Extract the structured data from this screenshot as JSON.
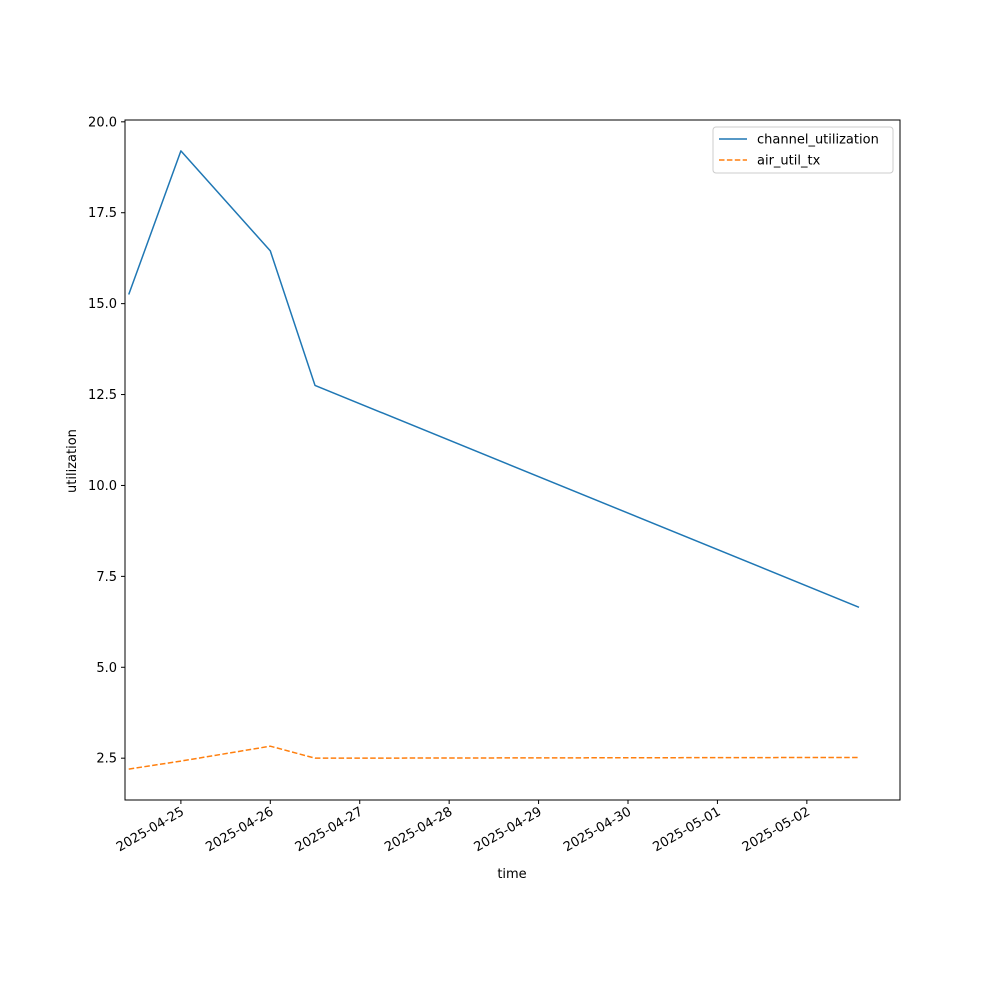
{
  "chart_data": {
    "type": "line",
    "title": "",
    "xlabel": "time",
    "ylabel": "utilization",
    "x_axis_type": "date",
    "xlim": [
      "2025-04-24 09:00",
      "2025-05-03 01:00"
    ],
    "ylim": [
      1.35,
      20.05
    ],
    "x_ticks": [
      "2025-04-25",
      "2025-04-26",
      "2025-04-27",
      "2025-04-28",
      "2025-04-29",
      "2025-04-30",
      "2025-05-01",
      "2025-05-02"
    ],
    "y_ticks": [
      2.5,
      5.0,
      7.5,
      10.0,
      12.5,
      15.0,
      17.5,
      20.0
    ],
    "grid": false,
    "legend": "top-right",
    "series": [
      {
        "name": "channel_utilization",
        "color": "#1f77b4",
        "style": "solid",
        "points": [
          {
            "x": "2025-04-24 10:00",
            "y": 15.25
          },
          {
            "x": "2025-04-25 00:00",
            "y": 19.2
          },
          {
            "x": "2025-04-26 00:00",
            "y": 16.45
          },
          {
            "x": "2025-04-26 12:00",
            "y": 12.75
          },
          {
            "x": "2025-05-02 14:00",
            "y": 6.65
          }
        ]
      },
      {
        "name": "air_util_tx",
        "color": "#ff7f0e",
        "style": "dashed",
        "points": [
          {
            "x": "2025-04-24 10:00",
            "y": 2.2
          },
          {
            "x": "2025-04-25 00:00",
            "y": 2.42
          },
          {
            "x": "2025-04-26 00:00",
            "y": 2.83
          },
          {
            "x": "2025-04-26 12:00",
            "y": 2.5
          },
          {
            "x": "2025-05-02 14:00",
            "y": 2.52
          }
        ]
      }
    ]
  }
}
